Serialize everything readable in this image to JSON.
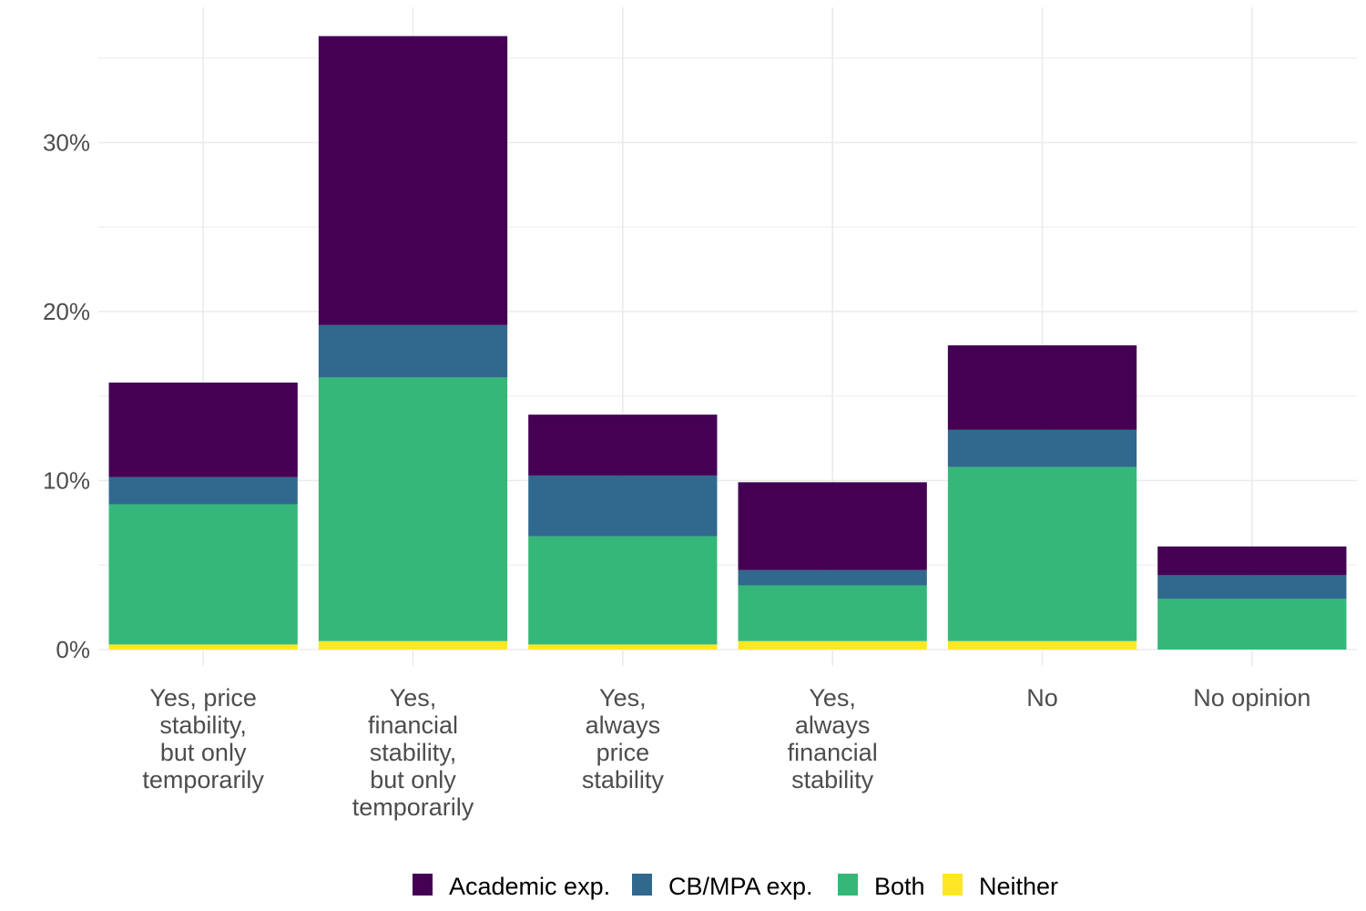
{
  "chart_data": {
    "type": "bar",
    "stacked": true,
    "categories": [
      [
        "Yes, price",
        "stability,",
        "but only",
        "temporarily"
      ],
      [
        "Yes,",
        "financial",
        "stability,",
        "but only",
        "temporarily"
      ],
      [
        "Yes,",
        "always",
        "price",
        "stability"
      ],
      [
        "Yes,",
        "always",
        "financial",
        "stability"
      ],
      [
        "No"
      ],
      [
        "No opinion"
      ]
    ],
    "series": [
      {
        "name": "Neither",
        "color": "#FDE725",
        "values": [
          0.3,
          0.5,
          0.3,
          0.5,
          0.5,
          0.0
        ]
      },
      {
        "name": "Both",
        "color": "#35B779",
        "values": [
          8.3,
          15.6,
          6.4,
          3.3,
          10.3,
          3.0
        ]
      },
      {
        "name": "CB/MPA exp.",
        "color": "#31688E",
        "values": [
          1.6,
          3.1,
          3.6,
          0.9,
          2.2,
          1.4
        ]
      },
      {
        "name": "Academic exp.",
        "color": "#440154",
        "values": [
          5.6,
          17.1,
          3.6,
          5.2,
          5.0,
          1.7
        ]
      }
    ],
    "legend_order": [
      "Academic exp.",
      "CB/MPA exp.",
      "Both",
      "Neither"
    ],
    "y_ticks": [
      0,
      10,
      20,
      30
    ],
    "y_tick_labels": [
      "0%",
      "10%",
      "20%",
      "30%"
    ],
    "ylim": [
      0,
      37.6
    ],
    "grid": true,
    "legend_position": "bottom",
    "title": "",
    "xlabel": "",
    "ylabel": ""
  }
}
